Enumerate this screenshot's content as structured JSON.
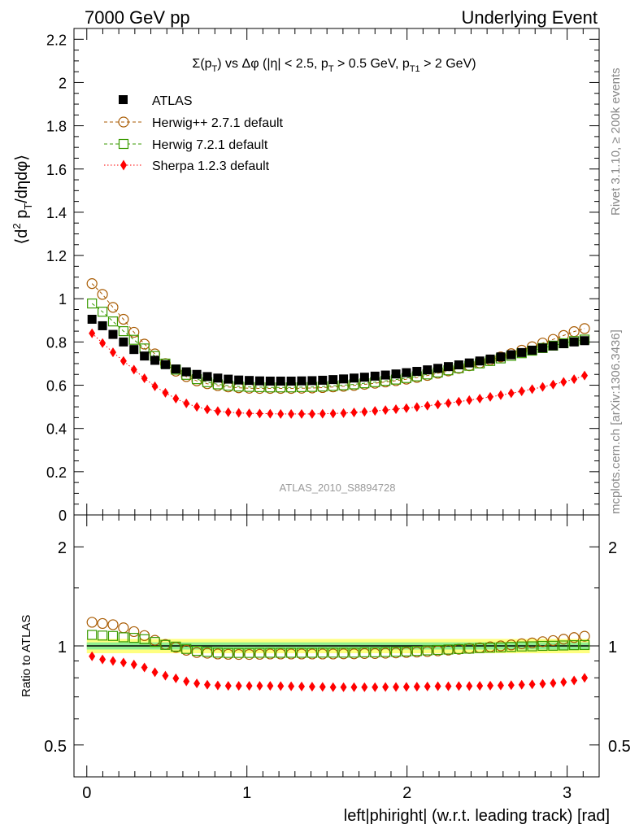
{
  "header": {
    "left": "7000 GeV pp",
    "right": "Underlying Event"
  },
  "side_labels": {
    "rivet": "Rivet 3.1.10, ≥ 200k events",
    "mcplots": "mcplots.cern.ch [arXiv:1306.3436]"
  },
  "watermark": "ATLAS_2010_S8894728",
  "chart_data": [
    {
      "type": "scatter",
      "panel": "main",
      "title_parts": [
        "Σ(p",
        "T",
        ") vs Δφ (|η| < 2.5, p",
        "T",
        " > 0.5 GeV, p",
        "T1",
        " > 2 GeV)"
      ],
      "ylabel_parts": [
        "⟨d",
        "2",
        " p",
        "T",
        "/dηdφ⟩"
      ],
      "xlabel": "left|phiright| (w.r.t. leading track) [rad]",
      "xlim": [
        -0.08,
        3.2
      ],
      "ylim": [
        0,
        2.25
      ],
      "yticks": [
        0,
        0.2,
        0.4,
        0.6,
        0.8,
        1,
        1.2,
        1.4,
        1.6,
        1.8,
        2,
        2.2
      ],
      "ytick_labels": [
        "0",
        "0.2",
        "0.4",
        "0.6",
        "0.8",
        "1",
        "1.2",
        "1.4",
        "1.6",
        "1.8",
        "2",
        "2.2"
      ],
      "legend_position": "top-left",
      "x": [
        0.0327,
        0.0982,
        0.1636,
        0.2291,
        0.2945,
        0.36,
        0.4254,
        0.4909,
        0.5563,
        0.6218,
        0.6872,
        0.7527,
        0.8181,
        0.8836,
        0.949,
        1.0145,
        1.0799,
        1.1454,
        1.2108,
        1.2763,
        1.3417,
        1.4072,
        1.4726,
        1.5381,
        1.6035,
        1.669,
        1.7344,
        1.7999,
        1.8653,
        1.9308,
        1.9962,
        2.0617,
        2.1271,
        2.1926,
        2.258,
        2.3235,
        2.3889,
        2.4544,
        2.5198,
        2.5853,
        2.6507,
        2.7162,
        2.7816,
        2.8471,
        2.9125,
        2.978,
        3.0434,
        3.1089
      ],
      "series": [
        {
          "name": "ATLAS",
          "marker": "square-filled",
          "color": "#000000",
          "values": [
            0.905,
            0.875,
            0.835,
            0.8,
            0.765,
            0.735,
            0.715,
            0.695,
            0.675,
            0.662,
            0.65,
            0.64,
            0.633,
            0.628,
            0.624,
            0.622,
            0.62,
            0.619,
            0.619,
            0.619,
            0.62,
            0.621,
            0.623,
            0.626,
            0.629,
            0.633,
            0.637,
            0.642,
            0.647,
            0.652,
            0.658,
            0.664,
            0.671,
            0.678,
            0.686,
            0.694,
            0.703,
            0.712,
            0.721,
            0.731,
            0.741,
            0.751,
            0.762,
            0.772,
            0.782,
            0.792,
            0.8,
            0.806
          ]
        },
        {
          "name": "Herwig++ 2.7.1 default",
          "marker": "circle-open",
          "line": "dashed",
          "color": "#a85a00",
          "values": [
            1.07,
            1.02,
            0.96,
            0.905,
            0.845,
            0.79,
            0.745,
            0.7,
            0.665,
            0.64,
            0.62,
            0.607,
            0.598,
            0.592,
            0.588,
            0.586,
            0.585,
            0.585,
            0.585,
            0.585,
            0.586,
            0.587,
            0.589,
            0.592,
            0.595,
            0.599,
            0.604,
            0.609,
            0.615,
            0.621,
            0.628,
            0.636,
            0.645,
            0.655,
            0.666,
            0.678,
            0.69,
            0.703,
            0.717,
            0.731,
            0.746,
            0.762,
            0.778,
            0.795,
            0.812,
            0.83,
            0.848,
            0.862
          ]
        },
        {
          "name": "Herwig 7.2.1 default",
          "marker": "square-open",
          "line": "dashed",
          "color": "#3a9a00",
          "values": [
            0.978,
            0.94,
            0.895,
            0.85,
            0.81,
            0.77,
            0.735,
            0.7,
            0.672,
            0.648,
            0.628,
            0.614,
            0.604,
            0.598,
            0.594,
            0.592,
            0.591,
            0.59,
            0.59,
            0.59,
            0.591,
            0.592,
            0.594,
            0.597,
            0.6,
            0.604,
            0.609,
            0.614,
            0.62,
            0.626,
            0.633,
            0.641,
            0.65,
            0.659,
            0.669,
            0.679,
            0.69,
            0.701,
            0.712,
            0.724,
            0.736,
            0.748,
            0.76,
            0.772,
            0.783,
            0.794,
            0.804,
            0.811
          ]
        },
        {
          "name": "Sherpa 1.2.3 default",
          "marker": "diamond-filled",
          "line": "dotted",
          "color": "#ff0000",
          "values": [
            0.84,
            0.795,
            0.752,
            0.712,
            0.672,
            0.632,
            0.595,
            0.565,
            0.538,
            0.516,
            0.5,
            0.488,
            0.48,
            0.475,
            0.472,
            0.47,
            0.469,
            0.468,
            0.467,
            0.467,
            0.467,
            0.467,
            0.468,
            0.469,
            0.471,
            0.474,
            0.477,
            0.481,
            0.485,
            0.489,
            0.494,
            0.499,
            0.505,
            0.511,
            0.517,
            0.524,
            0.531,
            0.538,
            0.546,
            0.554,
            0.563,
            0.572,
            0.582,
            0.592,
            0.603,
            0.615,
            0.628,
            0.645
          ]
        }
      ]
    },
    {
      "type": "scatter",
      "panel": "ratio",
      "ylabel": "Ratio to ATLAS",
      "yscale": "log",
      "xlim": [
        -0.08,
        3.2
      ],
      "ylim": [
        0.4,
        2.5
      ],
      "yticks": [
        0.5,
        1,
        2
      ],
      "ytick_labels": [
        "0.5",
        "1",
        "2"
      ],
      "xticks": [
        0,
        1,
        2,
        3
      ],
      "xtick_labels": [
        "0",
        "1",
        "2",
        "3"
      ],
      "band_inner": [
        0.975,
        1.025
      ],
      "band_outer": [
        0.95,
        1.05
      ],
      "band_inner_color": "#90ee90",
      "band_outer_color": "#ffff80",
      "x": [
        0.0327,
        0.0982,
        0.1636,
        0.2291,
        0.2945,
        0.36,
        0.4254,
        0.4909,
        0.5563,
        0.6218,
        0.6872,
        0.7527,
        0.8181,
        0.8836,
        0.949,
        1.0145,
        1.0799,
        1.1454,
        1.2108,
        1.2763,
        1.3417,
        1.4072,
        1.4726,
        1.5381,
        1.6035,
        1.669,
        1.7344,
        1.7999,
        1.8653,
        1.9308,
        1.9962,
        2.0617,
        2.1271,
        2.1926,
        2.258,
        2.3235,
        2.3889,
        2.4544,
        2.5198,
        2.5853,
        2.6507,
        2.7162,
        2.7816,
        2.8471,
        2.9125,
        2.978,
        3.0434,
        3.1089
      ],
      "series": [
        {
          "name": "Herwig++ 2.7.1 default",
          "marker": "circle-open",
          "color": "#a85a00",
          "values": [
            1.18,
            1.17,
            1.16,
            1.135,
            1.105,
            1.075,
            1.04,
            1.01,
            0.99,
            0.97,
            0.955,
            0.95,
            0.945,
            0.943,
            0.942,
            0.942,
            0.943,
            0.945,
            0.945,
            0.945,
            0.945,
            0.945,
            0.945,
            0.945,
            0.946,
            0.946,
            0.948,
            0.948,
            0.95,
            0.952,
            0.955,
            0.958,
            0.961,
            0.966,
            0.971,
            0.977,
            0.982,
            0.987,
            0.994,
            1.0,
            1.007,
            1.015,
            1.021,
            1.03,
            1.038,
            1.048,
            1.06,
            1.07
          ]
        },
        {
          "name": "Herwig 7.2.1 default",
          "marker": "square-open",
          "color": "#3a9a00",
          "values": [
            1.08,
            1.075,
            1.072,
            1.062,
            1.058,
            1.048,
            1.028,
            1.007,
            0.995,
            0.979,
            0.966,
            0.959,
            0.954,
            0.952,
            0.952,
            0.952,
            0.953,
            0.953,
            0.953,
            0.953,
            0.953,
            0.953,
            0.954,
            0.954,
            0.954,
            0.954,
            0.956,
            0.956,
            0.958,
            0.96,
            0.962,
            0.965,
            0.969,
            0.972,
            0.975,
            0.978,
            0.981,
            0.985,
            0.988,
            0.99,
            0.993,
            0.996,
            0.997,
            1.0,
            1.001,
            1.003,
            1.005,
            1.006
          ]
        },
        {
          "name": "Sherpa 1.2.3 default",
          "marker": "diamond-filled",
          "color": "#ff0000",
          "values": [
            0.93,
            0.91,
            0.9,
            0.89,
            0.878,
            0.86,
            0.832,
            0.812,
            0.797,
            0.78,
            0.769,
            0.762,
            0.758,
            0.756,
            0.756,
            0.756,
            0.756,
            0.756,
            0.755,
            0.754,
            0.753,
            0.752,
            0.751,
            0.749,
            0.749,
            0.749,
            0.749,
            0.749,
            0.75,
            0.75,
            0.751,
            0.752,
            0.753,
            0.754,
            0.754,
            0.755,
            0.755,
            0.756,
            0.757,
            0.758,
            0.76,
            0.762,
            0.764,
            0.767,
            0.771,
            0.776,
            0.785,
            0.8
          ]
        }
      ]
    }
  ]
}
